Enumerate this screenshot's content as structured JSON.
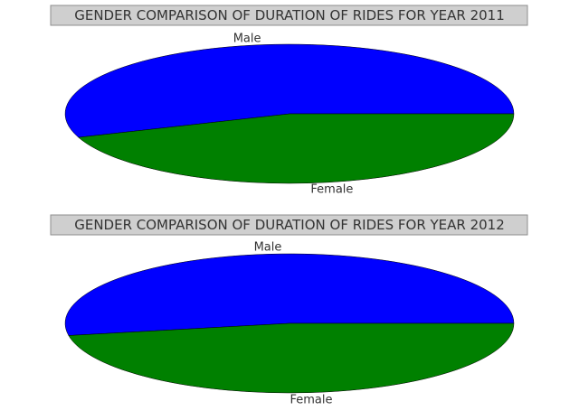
{
  "chart_data": [
    {
      "type": "pie",
      "title": "GENDER COMPARISON OF DURATION OF RIDES FOR YEAR 2011",
      "labels": [
        "Male",
        "Female"
      ],
      "values": [
        55.5,
        44.5
      ],
      "colors": [
        "#0000ff",
        "#008000"
      ]
    },
    {
      "type": "pie",
      "title": "GENDER COMPARISON OF DURATION OF RIDES FOR YEAR 2012",
      "labels": [
        "Male",
        "Female"
      ],
      "values": [
        52.8,
        47.2
      ],
      "colors": [
        "#0000ff",
        "#008000"
      ]
    }
  ]
}
